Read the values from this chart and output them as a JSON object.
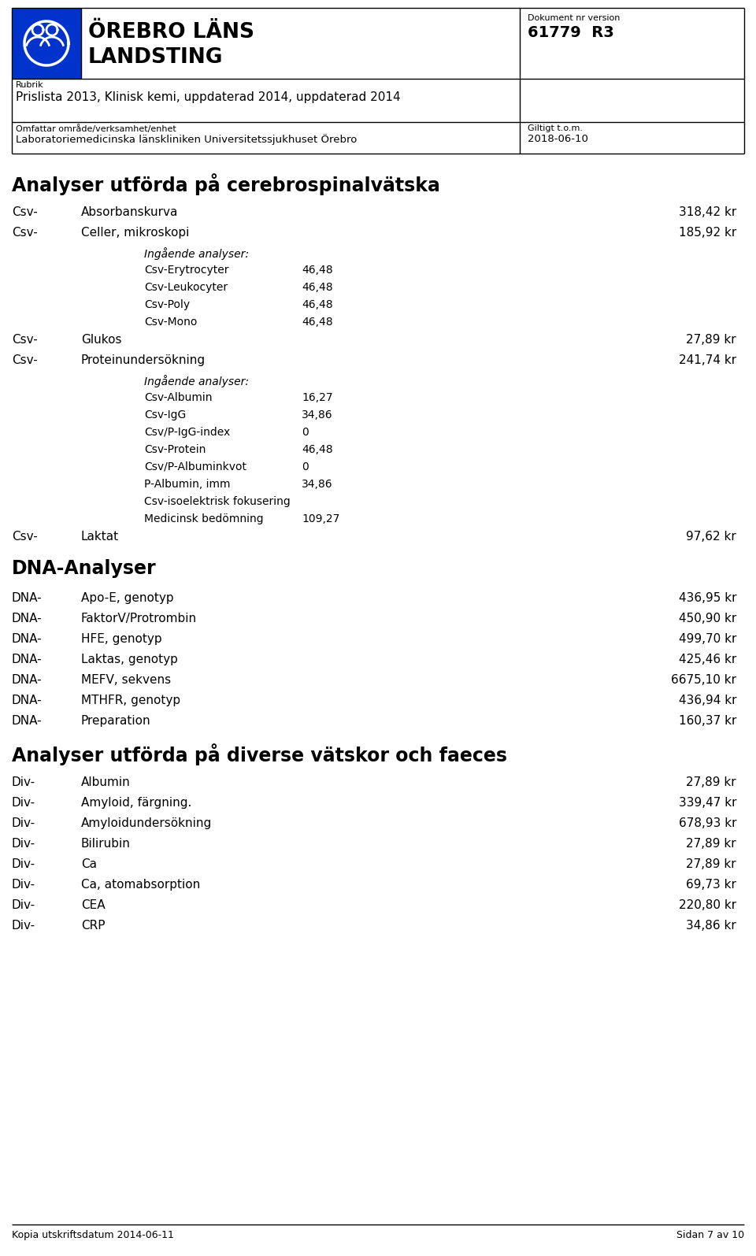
{
  "doc_num": "61779  R3",
  "doc_label": "Dokument nr version",
  "rubrik_label": "Rubrik",
  "title_line": "Prislista 2013, Klinisk kemi, uppdaterad 2014, uppdaterad 2014",
  "omr_label": "Omfattar område/verksamhet/enhet",
  "omr_value": "Laboratoriemedicinska länskliniken Universitetssjukhuset Örebro",
  "giltigt_label": "Giltigt t.o.m.",
  "giltigt_value": "2018-06-10",
  "section1_title": "Analyser utförda på cerebrospinalvätska",
  "section1_items": [
    {
      "prefix": "Csv-",
      "name": "Absorbanskurva",
      "price": "318,42 kr",
      "indent": 0
    },
    {
      "prefix": "Csv-",
      "name": "Celler, mikroskopi",
      "price": "185,92 kr",
      "indent": 0
    },
    {
      "prefix": "",
      "name": "Ingående analyser:",
      "price": "",
      "indent": 1
    },
    {
      "prefix": "",
      "name": "Csv-Erytrocyter",
      "price": "46,48",
      "indent": 2
    },
    {
      "prefix": "",
      "name": "Csv-Leukocyter",
      "price": "46,48",
      "indent": 2
    },
    {
      "prefix": "",
      "name": "Csv-Poly",
      "price": "46,48",
      "indent": 2
    },
    {
      "prefix": "",
      "name": "Csv-Mono",
      "price": "46,48",
      "indent": 2
    },
    {
      "prefix": "Csv-",
      "name": "Glukos",
      "price": "27,89 kr",
      "indent": 0
    },
    {
      "prefix": "Csv-",
      "name": "Proteinundersökning",
      "price": "241,74 kr",
      "indent": 0
    },
    {
      "prefix": "",
      "name": "Ingående analyser:",
      "price": "",
      "indent": 1
    },
    {
      "prefix": "",
      "name": "Csv-Albumin",
      "price": "16,27",
      "indent": 2
    },
    {
      "prefix": "",
      "name": "Csv-IgG",
      "price": "34,86",
      "indent": 2
    },
    {
      "prefix": "",
      "name": "Csv/P-IgG-index",
      "price": "0",
      "indent": 2
    },
    {
      "prefix": "",
      "name": "Csv-Protein",
      "price": "46,48",
      "indent": 2
    },
    {
      "prefix": "",
      "name": "Csv/P-Albuminkvot",
      "price": "0",
      "indent": 2
    },
    {
      "prefix": "",
      "name": "P-Albumin, imm",
      "price": "34,86",
      "indent": 2
    },
    {
      "prefix": "",
      "name": "Csv-isoelektrisk fokusering",
      "price": "",
      "indent": 2
    },
    {
      "prefix": "",
      "name": "Medicinsk bedömning",
      "price": "109,27",
      "indent": 2
    },
    {
      "prefix": "Csv-",
      "name": "Laktat",
      "price": "97,62 kr",
      "indent": 0
    }
  ],
  "section2_title": "DNA-Analyser",
  "section2_items": [
    {
      "prefix": "DNA-",
      "name": "Apo-E, genotyp",
      "price": "436,95 kr"
    },
    {
      "prefix": "DNA-",
      "name": "FaktorV/Protrombin",
      "price": "450,90 kr"
    },
    {
      "prefix": "DNA-",
      "name": "HFE, genotyp",
      "price": "499,70 kr"
    },
    {
      "prefix": "DNA-",
      "name": "Laktas, genotyp",
      "price": "425,46 kr"
    },
    {
      "prefix": "DNA-",
      "name": "MEFV, sekvens",
      "price": "6675,10 kr"
    },
    {
      "prefix": "DNA-",
      "name": "MTHFR, genotyp",
      "price": "436,94 kr"
    },
    {
      "prefix": "DNA-",
      "name": "Preparation",
      "price": "160,37 kr"
    }
  ],
  "section3_title": "Analyser utförda på diverse vätskor och faeces",
  "section3_items": [
    {
      "prefix": "Div-",
      "name": "Albumin",
      "price": "27,89 kr"
    },
    {
      "prefix": "Div-",
      "name": "Amyloid, färgning.",
      "price": "339,47 kr"
    },
    {
      "prefix": "Div-",
      "name": "Amyloidundersökning",
      "price": "678,93 kr"
    },
    {
      "prefix": "Div-",
      "name": "Bilirubin",
      "price": "27,89 kr"
    },
    {
      "prefix": "Div-",
      "name": "Ca",
      "price": "27,89 kr"
    },
    {
      "prefix": "Div-",
      "name": "Ca, atomabsorption",
      "price": "69,73 kr"
    },
    {
      "prefix": "Div-",
      "name": "CEA",
      "price": "220,80 kr"
    },
    {
      "prefix": "Div-",
      "name": "CRP",
      "price": "34,86 kr"
    }
  ],
  "footer_left": "Kopia utskriftsdatum 2014-06-11",
  "footer_right": "Sidan 7 av 10",
  "bg_color": "#ffffff",
  "header_blue": "#0033cc",
  "lw": 1.0
}
